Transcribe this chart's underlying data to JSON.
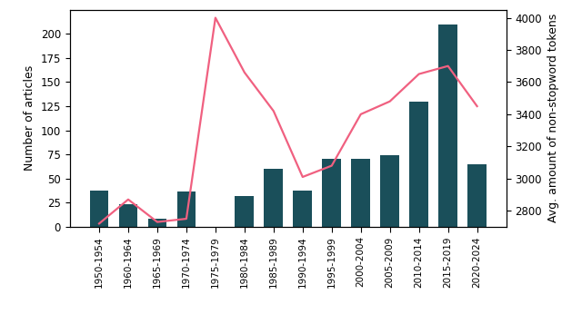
{
  "categories": [
    "1950-1954",
    "1960-1964",
    "1965-1969",
    "1970-1974",
    "1975-1979",
    "1980-1984",
    "1985-1989",
    "1990-1994",
    "1995-1999",
    "2000-2004",
    "2005-2009",
    "2010-2014",
    "2015-2019",
    "2020-2024"
  ],
  "bar_values": [
    38,
    23,
    8,
    37,
    0,
    32,
    60,
    38,
    70,
    70,
    74,
    130,
    210,
    65
  ],
  "line_values": [
    2720,
    2870,
    2730,
    2750,
    4000,
    3660,
    3420,
    3010,
    3080,
    3400,
    3480,
    3650,
    3700,
    3450
  ],
  "bar_color": "#1a4f5a",
  "line_color": "#f06080",
  "ylabel_left": "Number of articles",
  "ylabel_right": "Avg. amount of non-stopword tokens",
  "ylim_left": [
    0,
    225
  ],
  "ylim_right": [
    2700,
    4050
  ],
  "yticks_left": [
    0,
    25,
    50,
    75,
    100,
    125,
    150,
    175,
    200
  ],
  "yticks_right": [
    2800,
    3000,
    3200,
    3400,
    3600,
    3800,
    4000
  ],
  "background_color": "#ffffff"
}
